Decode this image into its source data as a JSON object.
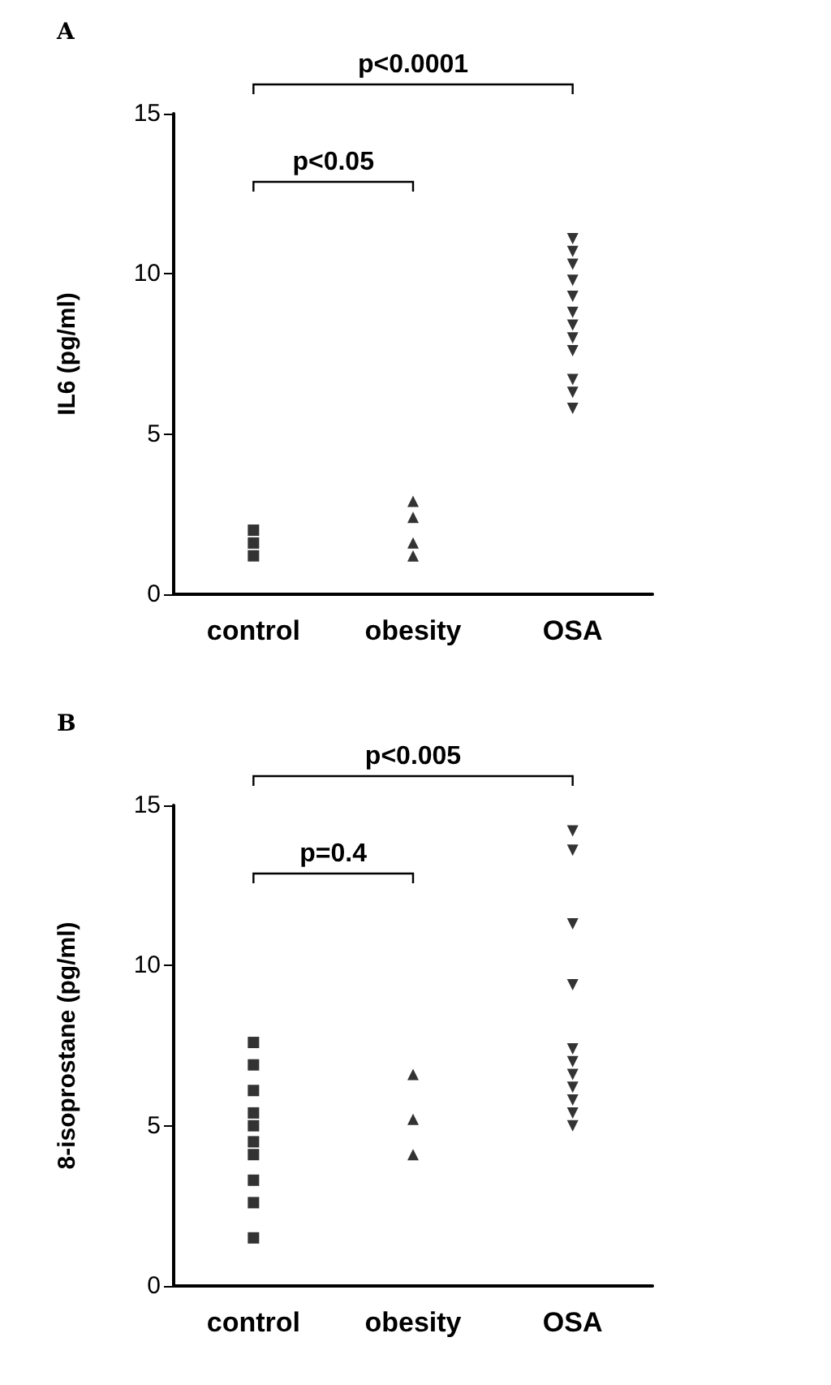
{
  "chart_data": [
    {
      "type": "scatter",
      "title": "A",
      "ylabel": "IL6 (pg/ml)",
      "categories": [
        "control",
        "obesity",
        "OSA"
      ],
      "ylim": [
        0,
        15
      ],
      "yticks": [
        0,
        5,
        10,
        15
      ],
      "annotations": [
        "p<0.0001",
        "p<0.05"
      ],
      "series": [
        {
          "color": "#000000",
          "marker": "square",
          "x": [
            "control",
            "control",
            "control"
          ],
          "values": [
            2.0,
            1.6,
            1.2
          ]
        },
        {
          "color": "#000000",
          "marker": "triangle",
          "x": [
            "obesity",
            "obesity",
            "obesity",
            "obesity"
          ],
          "values": [
            2.9,
            2.4,
            1.6,
            1.2
          ]
        },
        {
          "color": "#000000",
          "marker": "triangle-down",
          "x": [
            "OSA",
            "OSA",
            "OSA",
            "OSA",
            "OSA",
            "OSA",
            "OSA",
            "OSA",
            "OSA",
            "OSA",
            "OSA",
            "OSA"
          ],
          "values": [
            11.1,
            10.7,
            10.3,
            9.8,
            9.3,
            8.8,
            8.4,
            8.0,
            7.6,
            6.7,
            6.3,
            5.8
          ]
        }
      ]
    },
    {
      "type": "scatter",
      "title": "B",
      "ylabel": "8-isoprostane (pg/ml)",
      "categories": [
        "control",
        "obesity",
        "OSA"
      ],
      "ylim": [
        0,
        15
      ],
      "yticks": [
        0,
        5,
        10,
        15
      ],
      "annotations": [
        "p<0.005",
        "p=0.4"
      ],
      "series": [
        {
          "color": "#000000",
          "marker": "square",
          "x": [
            "control",
            "control",
            "control",
            "control",
            "control",
            "control",
            "control",
            "control",
            "control",
            "control"
          ],
          "values": [
            7.6,
            6.9,
            6.1,
            5.4,
            5.0,
            4.5,
            4.1,
            3.3,
            2.6,
            1.5
          ]
        },
        {
          "color": "#000000",
          "marker": "triangle",
          "x": [
            "obesity",
            "obesity",
            "obesity"
          ],
          "values": [
            6.6,
            5.2,
            4.1
          ]
        },
        {
          "color": "#000000",
          "marker": "triangle-down",
          "x": [
            "OSA",
            "OSA",
            "OSA",
            "OSA",
            "OSA",
            "OSA",
            "OSA",
            "OSA",
            "OSA",
            "OSA",
            "OSA"
          ],
          "values": [
            14.2,
            13.6,
            11.3,
            9.4,
            7.4,
            7.0,
            6.6,
            6.2,
            5.8,
            5.4,
            5.0
          ]
        }
      ]
    }
  ]
}
